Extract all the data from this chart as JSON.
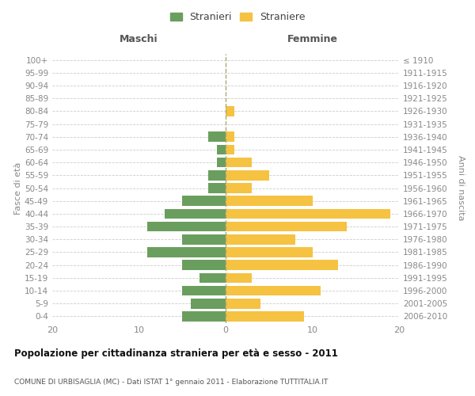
{
  "age_groups": [
    "0-4",
    "5-9",
    "10-14",
    "15-19",
    "20-24",
    "25-29",
    "30-34",
    "35-39",
    "40-44",
    "45-49",
    "50-54",
    "55-59",
    "60-64",
    "65-69",
    "70-74",
    "75-79",
    "80-84",
    "85-89",
    "90-94",
    "95-99",
    "100+"
  ],
  "birth_years": [
    "2006-2010",
    "2001-2005",
    "1996-2000",
    "1991-1995",
    "1986-1990",
    "1981-1985",
    "1976-1980",
    "1971-1975",
    "1966-1970",
    "1961-1965",
    "1956-1960",
    "1951-1955",
    "1946-1950",
    "1941-1945",
    "1936-1940",
    "1931-1935",
    "1926-1930",
    "1921-1925",
    "1916-1920",
    "1911-1915",
    "≤ 1910"
  ],
  "maschi": [
    5,
    4,
    5,
    3,
    5,
    9,
    5,
    9,
    7,
    5,
    2,
    2,
    1,
    1,
    2,
    0,
    0,
    0,
    0,
    0,
    0
  ],
  "femmine": [
    9,
    4,
    11,
    3,
    13,
    10,
    8,
    14,
    19,
    10,
    3,
    5,
    3,
    1,
    1,
    0,
    1,
    0,
    0,
    0,
    0
  ],
  "maschi_color": "#6a9e5e",
  "femmine_color": "#f5c242",
  "background_color": "#ffffff",
  "grid_color": "#cccccc",
  "title": "Popolazione per cittadinanza straniera per età e sesso - 2011",
  "subtitle": "COMUNE DI URBISAGLIA (MC) - Dati ISTAT 1° gennaio 2011 - Elaborazione TUTTITALIA.IT",
  "ylabel_left": "Fasce di età",
  "ylabel_right": "Anni di nascita",
  "label_maschi": "Maschi",
  "label_femmine": "Femmine",
  "legend_maschi": "Stranieri",
  "legend_femmine": "Straniere",
  "xlim": 20,
  "dashed_line_color": "#aaa870"
}
